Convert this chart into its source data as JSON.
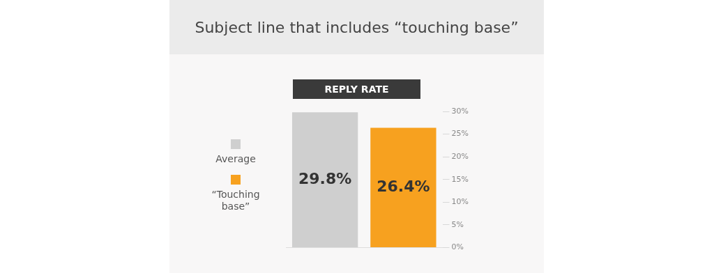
{
  "chart_data": {
    "type": "bar",
    "title": "Subject line that includes “touching base”",
    "subtitle": "REPLY RATE",
    "categories": [
      null,
      null
    ],
    "series": [
      {
        "name": "Average",
        "color": "#cfcfcf",
        "values": [
          29.8,
          null
        ]
      },
      {
        "name": "“Touching base”",
        "color": "#f7a11f",
        "values": [
          null,
          26.4
        ]
      }
    ],
    "ylim": [
      0,
      30
    ],
    "yticks": [
      {
        "value": 0,
        "label": "0%"
      },
      {
        "value": 5,
        "label": "5%"
      },
      {
        "value": 10,
        "label": "10%"
      },
      {
        "value": 15,
        "label": "15%"
      },
      {
        "value": 20,
        "label": "20%"
      },
      {
        "value": 25,
        "label": "25%"
      },
      {
        "value": 30,
        "label": "30%"
      }
    ],
    "value_labels": [
      "29.8%",
      "26.4%"
    ],
    "grid": false,
    "legend": "left"
  }
}
